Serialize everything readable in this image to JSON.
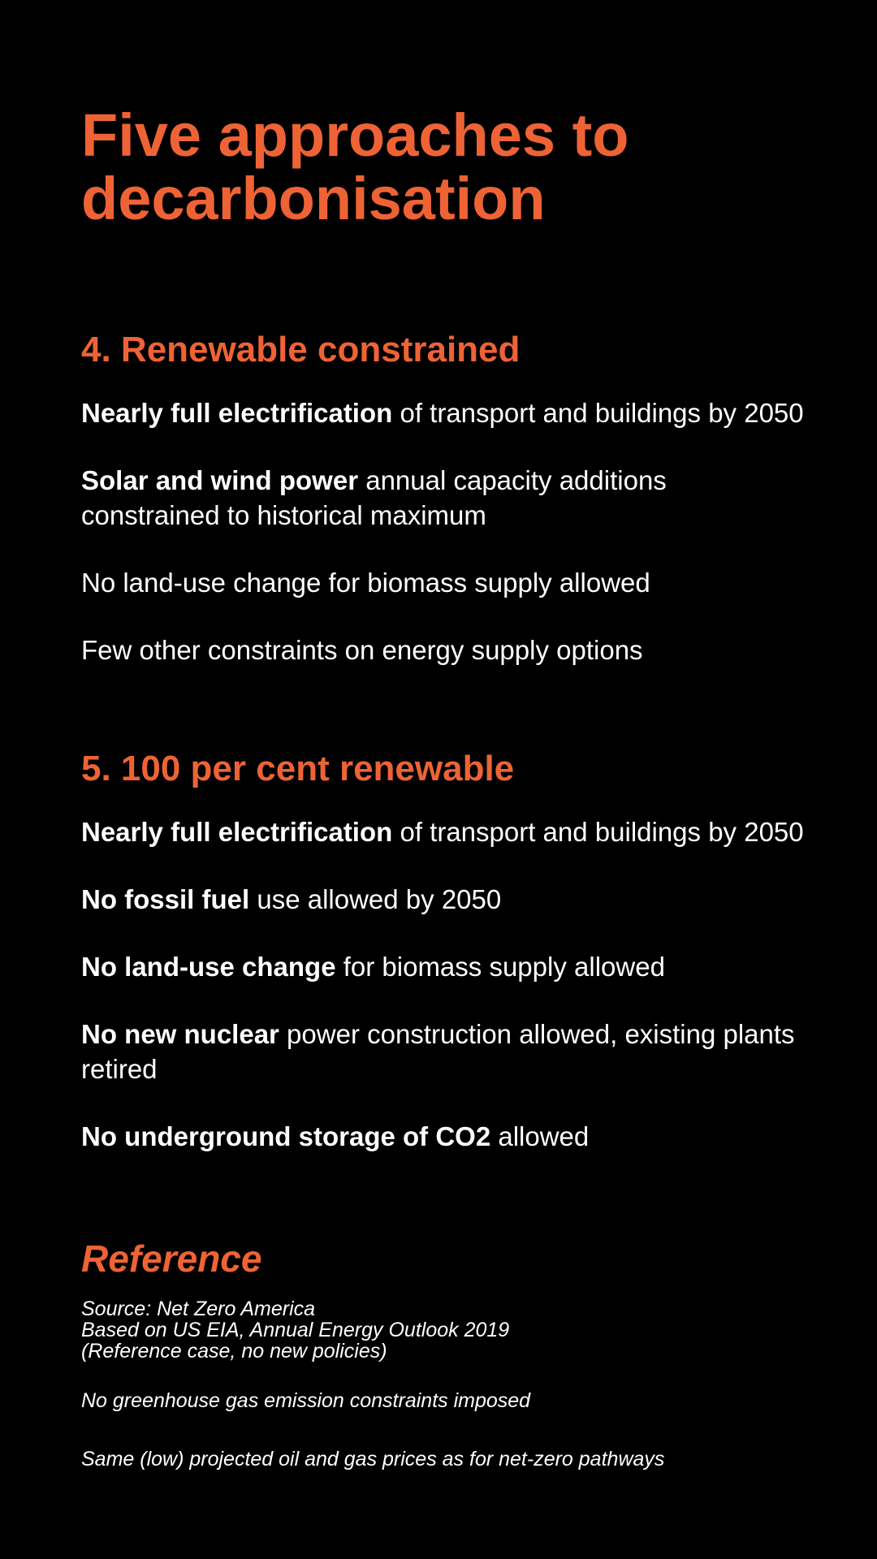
{
  "title": "Five approaches to decarbonisation",
  "sections": [
    {
      "heading": "4. Renewable constrained",
      "items": [
        {
          "bold": "Nearly full electrification",
          "rest": " of transport and buildings by 2050"
        },
        {
          "bold": "Solar and wind power",
          "rest": " annual capacity additions constrained to historical maximum"
        },
        {
          "bold": "",
          "rest": "No land-use change for biomass supply allowed"
        },
        {
          "bold": "",
          "rest": "Few other constraints on energy supply options"
        }
      ]
    },
    {
      "heading": "5. 100 per cent renewable",
      "items": [
        {
          "bold": "Nearly full electrification",
          "rest": " of transport and buildings by 2050"
        },
        {
          "bold": "No fossil fuel",
          "rest": " use allowed by 2050"
        },
        {
          "bold": "No land-use change",
          "rest": " for biomass supply allowed"
        },
        {
          "bold": "No new nuclear",
          "rest": " power construction allowed, existing plants retired"
        },
        {
          "bold": "No underground storage of CO2",
          "rest": " allowed"
        }
      ]
    }
  ],
  "reference": {
    "heading": "Reference",
    "source_lines": [
      "Source: Net Zero America",
      "Based on US EIA, Annual Energy Outlook 2019",
      "(Reference case, no new policies)"
    ],
    "items": [
      "No greenhouse gas emission constraints imposed",
      "Same (low) projected oil and gas prices as for net-zero pathways"
    ]
  },
  "colors": {
    "background": "#000000",
    "accent": "#ee6335",
    "text": "#ffffff"
  }
}
